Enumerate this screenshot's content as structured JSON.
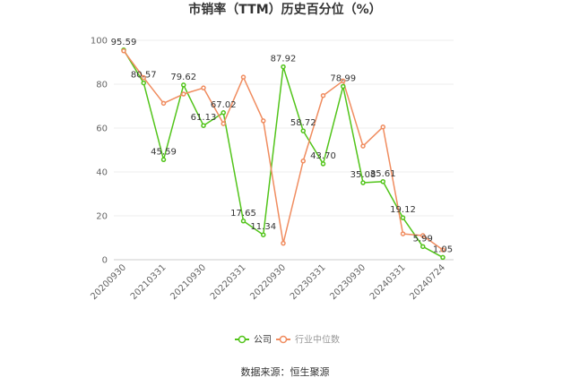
{
  "chart_data": {
    "type": "line",
    "title": "市销率（TTM）历史百分位（%）",
    "categories": [
      "20200930",
      "20210331",
      "20210930",
      "20220331",
      "20220930",
      "20230331",
      "20230930",
      "20240331",
      "20240724"
    ],
    "ylim": [
      0,
      100
    ],
    "y_ticks": [
      0,
      20,
      40,
      60,
      80,
      100
    ],
    "grid": true,
    "legend_position": "bottom",
    "series": [
      {
        "name": "公司",
        "color": "#52c41a",
        "points": [
          {
            "x": "20200930",
            "y": 95.59,
            "label": "95.59"
          },
          {
            "x": "",
            "y": 80.57,
            "label": "80.57"
          },
          {
            "x": "20210331",
            "y": 45.59,
            "label": "45.59"
          },
          {
            "x": "",
            "y": 79.62,
            "label": "79.62"
          },
          {
            "x": "20210930",
            "y": 61.13,
            "label": "61.13"
          },
          {
            "x": "",
            "y": 67.02,
            "label": "67.02"
          },
          {
            "x": "20220331",
            "y": 17.65,
            "label": "17.65"
          },
          {
            "x": "",
            "y": 11.34,
            "label": "11.34"
          },
          {
            "x": "20220930",
            "y": 87.92,
            "label": "87.92"
          },
          {
            "x": "",
            "y": 58.72,
            "label": "58.72"
          },
          {
            "x": "20230331",
            "y": 43.7,
            "label": "43.70"
          },
          {
            "x": "",
            "y": 78.99,
            "label": "78.99"
          },
          {
            "x": "20230930",
            "y": 35.08,
            "label": "35.08"
          },
          {
            "x": "",
            "y": 35.61,
            "label": "35.61"
          },
          {
            "x": "20240331",
            "y": 19.12,
            "label": "19.12"
          },
          {
            "x": "",
            "y": 5.99,
            "label": "5.99"
          },
          {
            "x": "20240724",
            "y": 1.05,
            "label": "1.05"
          }
        ]
      },
      {
        "name": "行业中位数",
        "color": "#f08c5f",
        "points": [
          {
            "x": "20200930",
            "y": 95.2
          },
          {
            "x": "",
            "y": 83.0
          },
          {
            "x": "20210331",
            "y": 71.3
          },
          {
            "x": "",
            "y": 75.5
          },
          {
            "x": "20210930",
            "y": 78.3
          },
          {
            "x": "",
            "y": 62.0
          },
          {
            "x": "20220331",
            "y": 83.2
          },
          {
            "x": "",
            "y": 63.3
          },
          {
            "x": "20220930",
            "y": 7.5
          },
          {
            "x": "",
            "y": 45.0
          },
          {
            "x": "20230331",
            "y": 74.8
          },
          {
            "x": "",
            "y": 81.5
          },
          {
            "x": "20230930",
            "y": 51.8
          },
          {
            "x": "",
            "y": 60.5
          },
          {
            "x": "20240331",
            "y": 11.8
          },
          {
            "x": "",
            "y": 11.0
          },
          {
            "x": "20240724",
            "y": 4.5
          }
        ]
      }
    ]
  },
  "source_text": "数据来源：恒生聚源"
}
